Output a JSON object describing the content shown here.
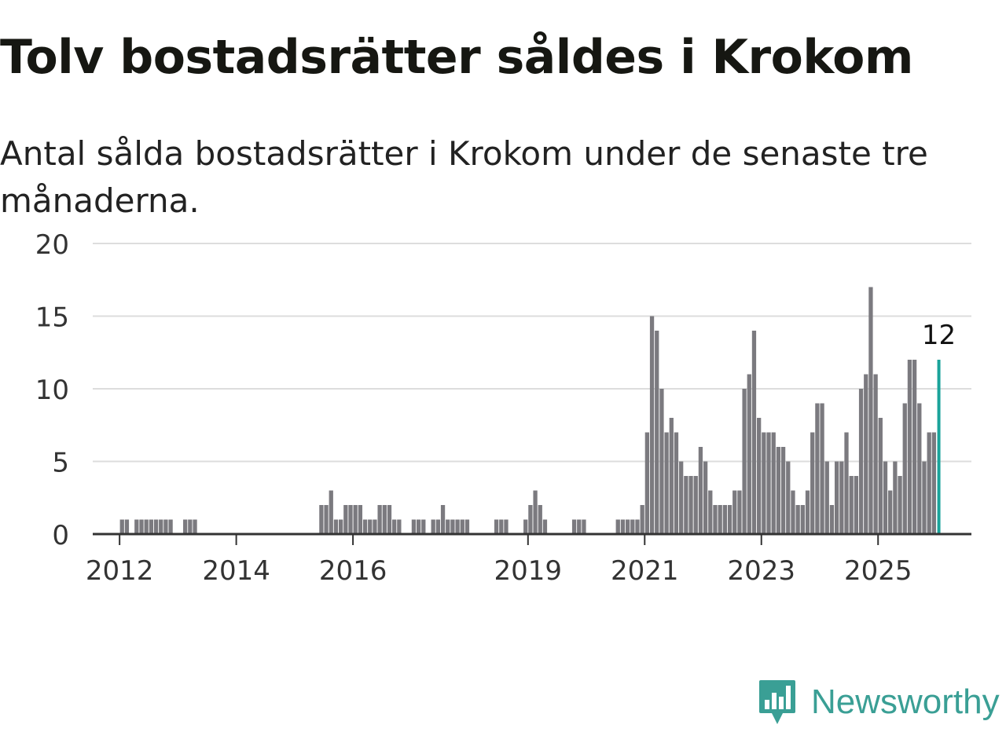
{
  "title": "Tolv bostadsrätter såldes i Krokom",
  "subtitle": "Antal sålda bostadsrätter i Krokom under de senaste tre månaderna.",
  "brand": {
    "name": "Newsworthy",
    "icon": "newsworthy-logo-icon"
  },
  "colors": {
    "bar": "#7b7a7f",
    "highlight": "#1aa39a",
    "grid": "#dddddd",
    "axis": "#333333",
    "brand": "#3a9f95"
  },
  "chart_data": {
    "type": "bar",
    "title": "Tolv bostadsrätter såldes i Krokom",
    "subtitle": "Antal sålda bostadsrätter i Krokom under de senaste tre månaderna.",
    "xlabel": "",
    "ylabel": "",
    "ylim": [
      0,
      20
    ],
    "yticks": [
      0,
      5,
      10,
      15,
      20
    ],
    "xticks": [
      "2012",
      "2014",
      "2016",
      "2019",
      "2021",
      "2023",
      "2025"
    ],
    "grid": true,
    "last_value_label": "12",
    "series": [
      {
        "values": [
          {
            "x": "2012-01",
            "y": 1
          },
          {
            "x": "2012-02",
            "y": 1
          },
          {
            "x": "2012-04",
            "y": 1
          },
          {
            "x": "2012-05",
            "y": 1
          },
          {
            "x": "2012-06",
            "y": 1
          },
          {
            "x": "2012-07",
            "y": 1
          },
          {
            "x": "2012-08",
            "y": 1
          },
          {
            "x": "2012-09",
            "y": 1
          },
          {
            "x": "2012-10",
            "y": 1
          },
          {
            "x": "2012-11",
            "y": 1
          },
          {
            "x": "2013-02",
            "y": 1
          },
          {
            "x": "2013-03",
            "y": 1
          },
          {
            "x": "2013-04",
            "y": 1
          },
          {
            "x": "2015-06",
            "y": 2
          },
          {
            "x": "2015-07",
            "y": 2
          },
          {
            "x": "2015-08",
            "y": 3
          },
          {
            "x": "2015-09",
            "y": 1
          },
          {
            "x": "2015-10",
            "y": 1
          },
          {
            "x": "2015-11",
            "y": 2
          },
          {
            "x": "2015-12",
            "y": 2
          },
          {
            "x": "2016-01",
            "y": 2
          },
          {
            "x": "2016-02",
            "y": 2
          },
          {
            "x": "2016-03",
            "y": 1
          },
          {
            "x": "2016-04",
            "y": 1
          },
          {
            "x": "2016-05",
            "y": 1
          },
          {
            "x": "2016-06",
            "y": 2
          },
          {
            "x": "2016-07",
            "y": 2
          },
          {
            "x": "2016-08",
            "y": 2
          },
          {
            "x": "2016-09",
            "y": 1
          },
          {
            "x": "2016-10",
            "y": 1
          },
          {
            "x": "2017-01",
            "y": 1
          },
          {
            "x": "2017-02",
            "y": 1
          },
          {
            "x": "2017-03",
            "y": 1
          },
          {
            "x": "2017-05",
            "y": 1
          },
          {
            "x": "2017-06",
            "y": 1
          },
          {
            "x": "2017-07",
            "y": 2
          },
          {
            "x": "2017-08",
            "y": 1
          },
          {
            "x": "2017-09",
            "y": 1
          },
          {
            "x": "2017-10",
            "y": 1
          },
          {
            "x": "2017-11",
            "y": 1
          },
          {
            "x": "2017-12",
            "y": 1
          },
          {
            "x": "2018-06",
            "y": 1
          },
          {
            "x": "2018-07",
            "y": 1
          },
          {
            "x": "2018-08",
            "y": 1
          },
          {
            "x": "2018-12",
            "y": 1
          },
          {
            "x": "2019-01",
            "y": 2
          },
          {
            "x": "2019-02",
            "y": 3
          },
          {
            "x": "2019-03",
            "y": 2
          },
          {
            "x": "2019-04",
            "y": 1
          },
          {
            "x": "2019-10",
            "y": 1
          },
          {
            "x": "2019-11",
            "y": 1
          },
          {
            "x": "2019-12",
            "y": 1
          },
          {
            "x": "2020-07",
            "y": 1
          },
          {
            "x": "2020-08",
            "y": 1
          },
          {
            "x": "2020-09",
            "y": 1
          },
          {
            "x": "2020-10",
            "y": 1
          },
          {
            "x": "2020-11",
            "y": 1
          },
          {
            "x": "2020-12",
            "y": 2
          },
          {
            "x": "2021-01",
            "y": 7
          },
          {
            "x": "2021-02",
            "y": 15
          },
          {
            "x": "2021-03",
            "y": 14
          },
          {
            "x": "2021-04",
            "y": 10
          },
          {
            "x": "2021-05",
            "y": 7
          },
          {
            "x": "2021-06",
            "y": 8
          },
          {
            "x": "2021-07",
            "y": 7
          },
          {
            "x": "2021-08",
            "y": 5
          },
          {
            "x": "2021-09",
            "y": 4
          },
          {
            "x": "2021-10",
            "y": 4
          },
          {
            "x": "2021-11",
            "y": 4
          },
          {
            "x": "2021-12",
            "y": 6
          },
          {
            "x": "2022-01",
            "y": 5
          },
          {
            "x": "2022-02",
            "y": 3
          },
          {
            "x": "2022-03",
            "y": 2
          },
          {
            "x": "2022-04",
            "y": 2
          },
          {
            "x": "2022-05",
            "y": 2
          },
          {
            "x": "2022-06",
            "y": 2
          },
          {
            "x": "2022-07",
            "y": 3
          },
          {
            "x": "2022-08",
            "y": 3
          },
          {
            "x": "2022-09",
            "y": 10
          },
          {
            "x": "2022-10",
            "y": 11
          },
          {
            "x": "2022-11",
            "y": 14
          },
          {
            "x": "2022-12",
            "y": 8
          },
          {
            "x": "2023-01",
            "y": 7
          },
          {
            "x": "2023-02",
            "y": 7
          },
          {
            "x": "2023-03",
            "y": 7
          },
          {
            "x": "2023-04",
            "y": 6
          },
          {
            "x": "2023-05",
            "y": 6
          },
          {
            "x": "2023-06",
            "y": 5
          },
          {
            "x": "2023-07",
            "y": 3
          },
          {
            "x": "2023-08",
            "y": 2
          },
          {
            "x": "2023-09",
            "y": 2
          },
          {
            "x": "2023-10",
            "y": 3
          },
          {
            "x": "2023-11",
            "y": 7
          },
          {
            "x": "2023-12",
            "y": 9
          },
          {
            "x": "2024-01",
            "y": 9
          },
          {
            "x": "2024-02",
            "y": 5
          },
          {
            "x": "2024-03",
            "y": 2
          },
          {
            "x": "2024-04",
            "y": 5
          },
          {
            "x": "2024-05",
            "y": 5
          },
          {
            "x": "2024-06",
            "y": 7
          },
          {
            "x": "2024-07",
            "y": 4
          },
          {
            "x": "2024-08",
            "y": 4
          },
          {
            "x": "2024-09",
            "y": 10
          },
          {
            "x": "2024-10",
            "y": 11
          },
          {
            "x": "2024-11",
            "y": 17
          },
          {
            "x": "2024-12",
            "y": 11
          },
          {
            "x": "2025-01",
            "y": 8
          },
          {
            "x": "2025-02",
            "y": 5
          },
          {
            "x": "2025-03",
            "y": 3
          },
          {
            "x": "2025-04",
            "y": 5
          },
          {
            "x": "2025-05",
            "y": 4
          },
          {
            "x": "2025-06",
            "y": 9
          },
          {
            "x": "2025-07",
            "y": 12
          },
          {
            "x": "2025-08",
            "y": 12
          },
          {
            "x": "2025-09",
            "y": 9
          },
          {
            "x": "2025-10",
            "y": 5
          },
          {
            "x": "2025-11",
            "y": 7
          },
          {
            "x": "2025-12",
            "y": 7
          },
          {
            "x": "2026-01",
            "y": 12
          }
        ]
      }
    ]
  }
}
